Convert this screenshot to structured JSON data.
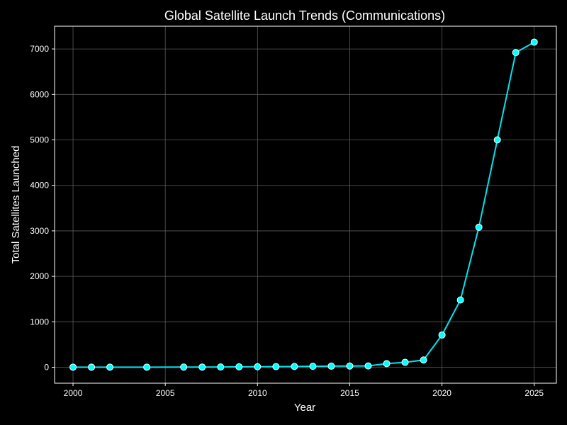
{
  "chart_data": {
    "type": "line",
    "title": "Global Satellite Launch Trends (Communications)",
    "xlabel": "Year",
    "ylabel": "Total Satellites Launched",
    "xlim": [
      1999,
      2026.2
    ],
    "ylim": [
      -350,
      7500
    ],
    "x_ticks": [
      2000,
      2005,
      2010,
      2015,
      2020,
      2025
    ],
    "y_ticks": [
      0,
      1000,
      2000,
      3000,
      4000,
      5000,
      6000,
      7000
    ],
    "grid": true,
    "legend": "none",
    "colors": {
      "background": "#000000",
      "axes": "#ffffff",
      "grid": "#5a5a5a",
      "line": "#00e5ee",
      "marker_fill": "#00ffff",
      "marker_edge": "#ffffff",
      "text": "#ffffff"
    },
    "series": [
      {
        "x": [
          2000,
          2001,
          2002,
          2004,
          2006,
          2007,
          2008,
          2009,
          2010,
          2011,
          2012,
          2013,
          2014,
          2015,
          2016,
          2017,
          2018,
          2019,
          2020,
          2021,
          2022,
          2023,
          2024,
          2025
        ],
        "y": [
          3,
          3,
          3,
          3,
          4,
          5,
          6,
          10,
          12,
          15,
          18,
          22,
          25,
          28,
          30,
          80,
          110,
          160,
          710,
          1480,
          3080,
          5000,
          6920,
          7150
        ]
      }
    ]
  }
}
